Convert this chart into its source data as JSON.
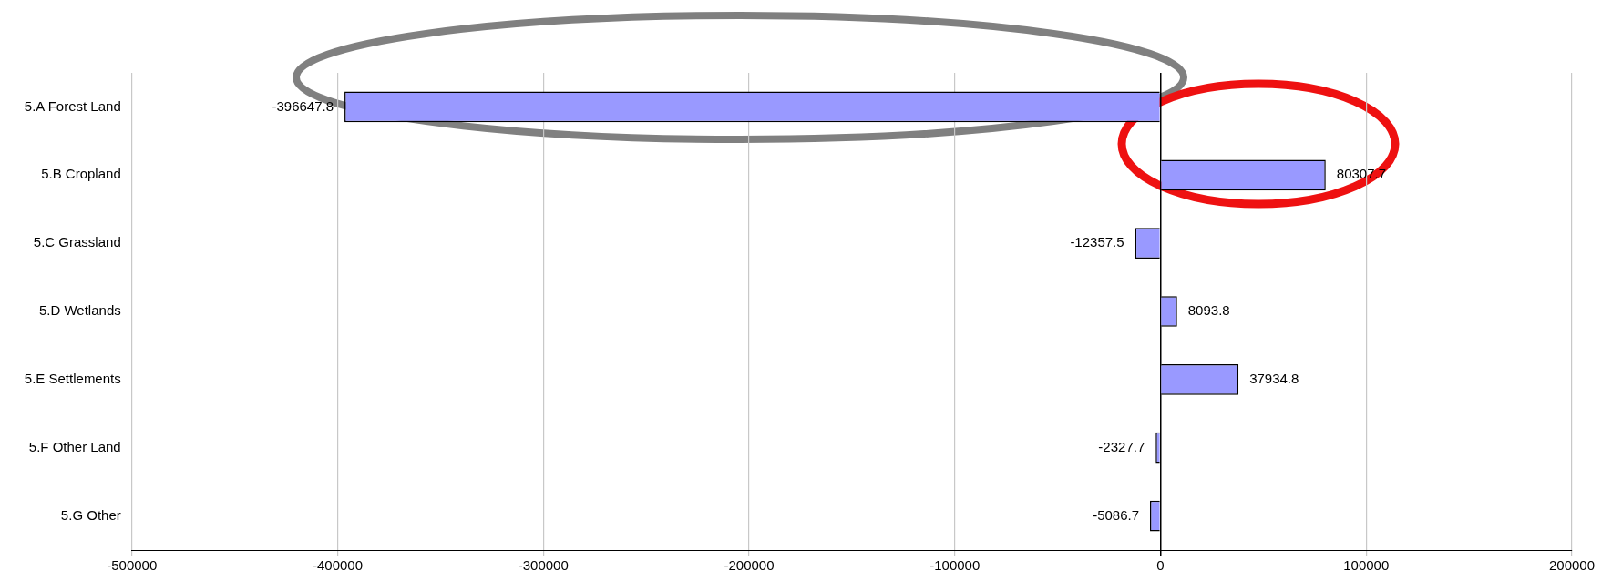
{
  "chart_data": {
    "type": "bar",
    "orientation": "horizontal",
    "categories": [
      "5.A Forest Land",
      "5.B Cropland",
      "5.C Grassland",
      "5.D Wetlands",
      "5.E Settlements",
      "5.F Other Land",
      "5.G Other"
    ],
    "values": [
      -396647.8,
      80307.7,
      -12357.5,
      8093.8,
      37934.8,
      -2327.7,
      -5086.7
    ],
    "color": "#9999ff",
    "xlim": [
      -500000,
      200000
    ],
    "xticks": [
      -500000,
      -400000,
      -300000,
      -200000,
      -100000,
      0,
      100000,
      200000
    ],
    "grid": "x",
    "legend": false,
    "data_labels": true
  }
}
